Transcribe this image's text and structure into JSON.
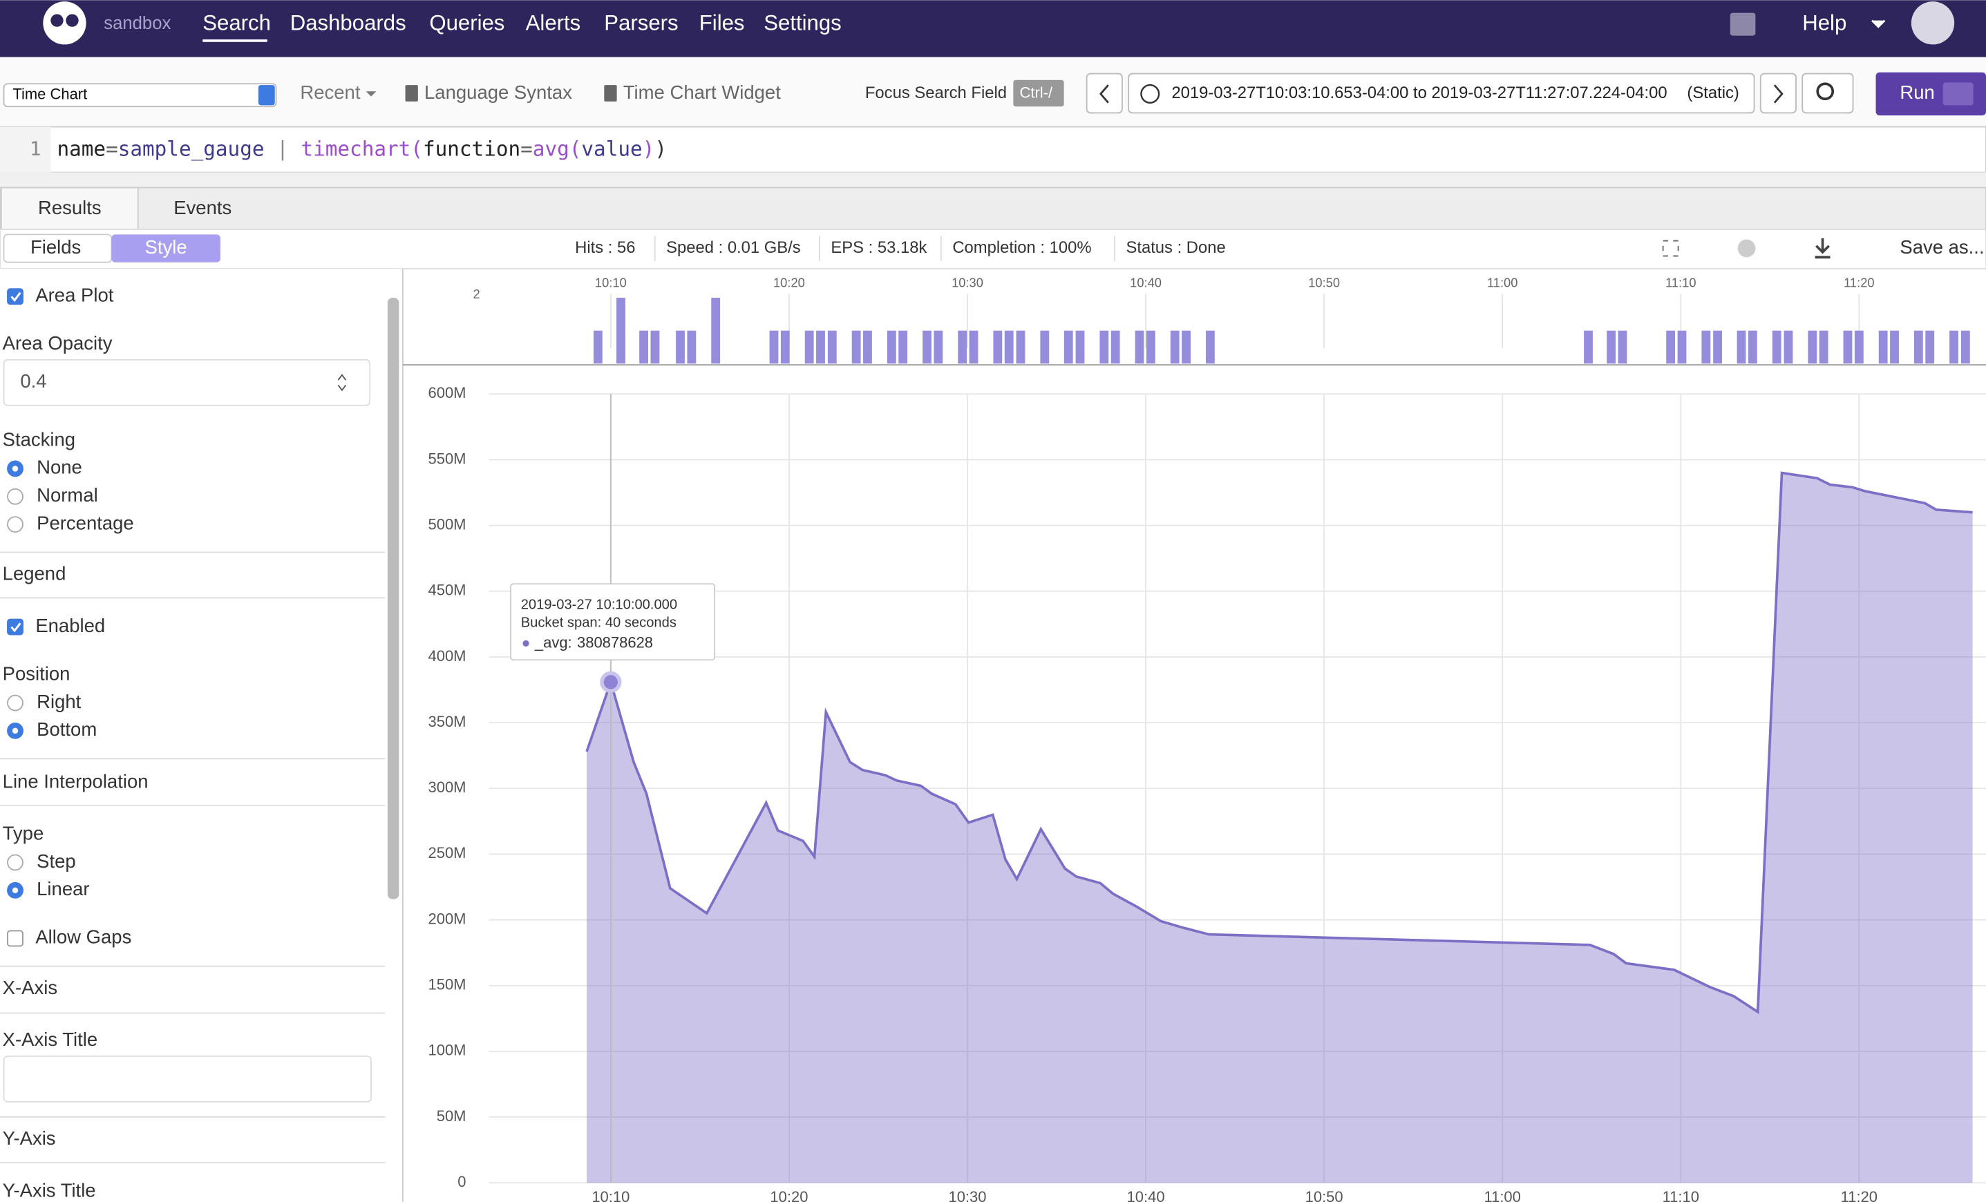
{
  "nav": {
    "brand": "sandbox",
    "items": [
      "Search",
      "Dashboards",
      "Queries",
      "Alerts",
      "Parsers",
      "Files",
      "Settings"
    ],
    "help": "Help"
  },
  "toolbar": {
    "widget": "Time Chart",
    "recent": "Recent",
    "language": "Language Syntax",
    "widget_link": "Time Chart Widget",
    "focus": "Focus Search Field",
    "shortcut": "Ctrl-/",
    "time_range": "2019-03-27T10:03:10.653-04:00 to 2019-03-27T11:27:07.224-04:00",
    "mode": "(Static)",
    "run": "Run"
  },
  "query": {
    "line": "1",
    "tokens": [
      "name",
      "=",
      "sample_gauge",
      " | ",
      "timechart",
      "(",
      "function",
      "=",
      "avg",
      "(",
      "value",
      ")",
      ")"
    ]
  },
  "tabs": [
    "Results",
    "Events"
  ],
  "subtabs": [
    "Fields",
    "Style"
  ],
  "stats": [
    "Hits : 56",
    "Speed : 0.01 GB/s",
    "EPS : 53.18k",
    "Completion : 100%",
    "Status : Done"
  ],
  "save": "Save as...",
  "style_panel": {
    "area_plot": {
      "label": "Area Plot",
      "checked": true
    },
    "area_opacity": {
      "label": "Area Opacity",
      "value": "0.4"
    },
    "stacking": {
      "label": "Stacking",
      "options": [
        "None",
        "Normal",
        "Percentage"
      ],
      "selected": 0
    },
    "legend": "Legend",
    "legend_enabled": {
      "label": "Enabled",
      "checked": true
    },
    "position": {
      "label": "Position",
      "options": [
        "Right",
        "Bottom"
      ],
      "selected": 1
    },
    "line_interpolation": "Line Interpolation",
    "type": {
      "label": "Type",
      "options": [
        "Step",
        "Linear"
      ],
      "selected": 1
    },
    "allow_gaps": {
      "label": "Allow Gaps",
      "checked": false
    },
    "x_axis": "X-Axis",
    "x_axis_title": "X-Axis Title",
    "y_axis": "Y-Axis",
    "y_axis_title": "Y-Axis Title"
  },
  "chart_data": [
    {
      "type": "bar",
      "color": "#958cdb",
      "x": [
        "10:09:17",
        "10:10:34",
        "10:11:51",
        "10:12:29",
        "10:13:54",
        "10:14:32",
        "10:15:53",
        "10:19:09",
        "10:19:47",
        "10:21:08",
        "10:21:46",
        "10:22:25",
        "10:23:46",
        "10:24:24",
        "10:25:45",
        "10:26:23",
        "10:27:44",
        "10:28:22",
        "10:29:43",
        "10:30:21",
        "10:31:42",
        "10:32:20",
        "10:32:59",
        "10:34:20",
        "10:35:40",
        "10:36:19",
        "10:37:40",
        "10:38:18",
        "10:39:39",
        "10:40:17",
        "10:41:38",
        "10:42:16",
        "10:43:37",
        "11:04:49",
        "11:06:06",
        "11:06:44",
        "11:09:26",
        "11:10:04",
        "11:11:25",
        "11:12:04",
        "11:13:24",
        "11:14:02",
        "11:15:23",
        "11:16:02",
        "11:17:23",
        "11:18:01",
        "11:19:22",
        "11:20:00",
        "11:21:21",
        "11:21:59",
        "11:23:20",
        "11:23:58",
        "11:25:19",
        "11:25:58"
      ],
      "values": [
        1,
        2,
        1,
        1,
        1,
        1,
        2,
        1,
        1,
        1,
        1,
        1,
        1,
        1,
        1,
        1,
        1,
        1,
        1,
        1,
        1,
        1,
        1,
        1,
        1,
        1,
        1,
        1,
        1,
        1,
        1,
        1,
        1,
        1,
        1,
        1,
        1,
        1,
        1,
        1,
        1,
        1,
        1,
        1,
        1,
        1,
        1,
        1,
        1,
        1,
        1,
        1,
        1,
        1
      ],
      "xlim": [
        "10:03:10",
        "11:27:07"
      ],
      "xticks": [
        "10:10",
        "10:20",
        "10:30",
        "10:40",
        "10:50",
        "11:00",
        "11:10",
        "11:20"
      ],
      "ylim": [
        0,
        2
      ],
      "yticks": [
        2
      ]
    },
    {
      "type": "area",
      "x": [
        "10:08:39",
        "10:10:00",
        "10:11:17",
        "10:12:00",
        "10:13:20",
        "10:15:23",
        "10:18:43",
        "10:19:22",
        "10:20:47",
        "10:21:25",
        "10:22:04",
        "10:23:25",
        "10:24:07",
        "10:25:24",
        "10:26:02",
        "10:27:23",
        "10:28:00",
        "10:29:20",
        "10:30:04",
        "10:31:25",
        "10:32:08",
        "10:32:46",
        "10:34:07",
        "10:35:28",
        "10:36:06",
        "10:37:27",
        "10:38:09",
        "10:39:30",
        "10:40:51",
        "10:42:07",
        "10:43:32",
        "11:04:54",
        "11:06:14",
        "11:06:56",
        "11:09:38",
        "11:11:37",
        "11:12:58",
        "11:14:19",
        "11:15:40",
        "11:17:39",
        "11:18:22",
        "11:19:38",
        "11:20:21",
        "11:23:41",
        "11:24:19",
        "11:26:22"
      ],
      "series": [
        {
          "name": "_avg",
          "color": "#7b6fc6",
          "values": [
            328000000,
            380878628,
            320000000,
            296000000,
            224000000,
            205000000,
            289000000,
            268000000,
            260000000,
            248000000,
            358000000,
            320000000,
            314000000,
            310000000,
            306000000,
            302000000,
            296000000,
            288000000,
            274000000,
            280000000,
            246000000,
            231000000,
            269000000,
            239000000,
            233000000,
            228000000,
            220000000,
            210000000,
            199000000,
            194000000,
            189000000,
            181000000,
            174000000,
            167000000,
            162000000,
            149000000,
            142000000,
            130000000,
            540000000,
            536000000,
            531000000,
            529000000,
            526000000,
            517000000,
            512000000,
            510000000
          ]
        }
      ],
      "xlim": [
        "10:03:10",
        "11:27:07"
      ],
      "xticks": [
        "10:10",
        "10:20",
        "10:30",
        "10:40",
        "10:50",
        "11:00",
        "11:10",
        "11:20"
      ],
      "ylim": [
        0,
        600000000
      ],
      "yticks": [
        0,
        {
          "value": 50000000,
          "label": "50M"
        },
        {
          "value": 100000000,
          "label": "100M"
        },
        {
          "value": 150000000,
          "label": "150M"
        },
        {
          "value": 200000000,
          "label": "200M"
        },
        {
          "value": 250000000,
          "label": "250M"
        },
        {
          "value": 300000000,
          "label": "300M"
        },
        {
          "value": 350000000,
          "label": "350M"
        },
        {
          "value": 400000000,
          "label": "400M"
        },
        {
          "value": 450000000,
          "label": "450M"
        },
        {
          "value": 500000000,
          "label": "500M"
        },
        {
          "value": 550000000,
          "label": "550M"
        },
        {
          "value": 600000000,
          "label": "600M"
        }
      ],
      "grid": true,
      "tooltip": {
        "time": "2019-03-27 10:10:00.000",
        "span": "Bucket span: 40 seconds",
        "label": "_avg:"
      }
    }
  ]
}
